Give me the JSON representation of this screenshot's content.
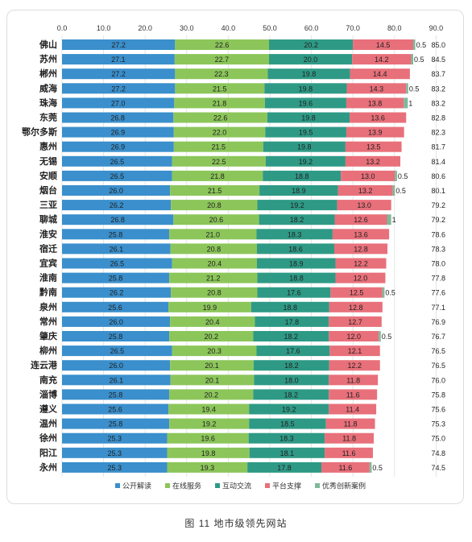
{
  "caption": "图 11    地市级领先网站",
  "chart_data": {
    "type": "bar",
    "orientation": "horizontal",
    "stacked": true,
    "categories": [
      "佛山",
      "苏州",
      "郴州",
      "威海",
      "珠海",
      "东莞",
      "鄂尔多斯",
      "惠州",
      "无锡",
      "安顺",
      "烟台",
      "三亚",
      "聊城",
      "淮安",
      "宿迁",
      "宜宾",
      "淮南",
      "黔南",
      "泉州",
      "常州",
      "肇庆",
      "柳州",
      "连云港",
      "南充",
      "淄博",
      "遵义",
      "温州",
      "徐州",
      "阳江",
      "永州"
    ],
    "series": [
      {
        "name": "公开解读",
        "color": "#3a8fcc",
        "values": [
          27.2,
          27.1,
          27.2,
          27.2,
          27.0,
          26.8,
          26.9,
          26.9,
          26.5,
          26.5,
          26.0,
          26.2,
          26.8,
          25.8,
          26.1,
          26.5,
          25.8,
          26.2,
          25.6,
          26.0,
          25.8,
          26.5,
          26.0,
          26.1,
          25.8,
          25.6,
          25.8,
          25.3,
          25.3,
          25.3
        ]
      },
      {
        "name": "在线服务",
        "color": "#8cc65a",
        "values": [
          22.6,
          22.7,
          22.3,
          21.5,
          21.8,
          22.6,
          22.0,
          21.5,
          22.5,
          21.8,
          21.5,
          20.8,
          20.6,
          21.0,
          20.8,
          20.4,
          21.2,
          20.8,
          19.9,
          20.4,
          20.2,
          20.3,
          20.1,
          20.1,
          20.2,
          19.4,
          19.2,
          19.6,
          19.8,
          19.3
        ]
      },
      {
        "name": "互动交流",
        "color": "#2e9a86",
        "values": [
          20.2,
          20.0,
          19.8,
          19.8,
          19.6,
          19.8,
          19.5,
          19.8,
          19.2,
          18.8,
          18.9,
          19.2,
          18.2,
          18.3,
          18.6,
          18.9,
          18.8,
          17.6,
          18.8,
          17.8,
          18.2,
          17.6,
          18.2,
          18.0,
          18.2,
          19.2,
          18.5,
          18.3,
          18.1,
          17.8
        ]
      },
      {
        "name": "平台支撑",
        "color": "#e8707a",
        "values": [
          14.5,
          14.2,
          14.4,
          14.3,
          13.8,
          13.6,
          13.9,
          13.5,
          13.2,
          13.0,
          13.2,
          13.0,
          12.6,
          13.6,
          12.8,
          12.2,
          12.0,
          12.5,
          12.8,
          12.7,
          12.0,
          12.1,
          12.2,
          11.8,
          11.6,
          11.4,
          11.8,
          11.8,
          11.6,
          11.6
        ]
      },
      {
        "name": "优秀创新案例",
        "color": "#7fb89a",
        "values": [
          0.5,
          0.5,
          0,
          0.5,
          1,
          0,
          0,
          0,
          0,
          0.5,
          0.5,
          0,
          1,
          0,
          0,
          0,
          0,
          0.5,
          0,
          0,
          0.5,
          0,
          0,
          0,
          0,
          0,
          0,
          0,
          0,
          0.5
        ]
      }
    ],
    "totals": [
      85.0,
      84.5,
      83.7,
      83.2,
      83.2,
      82.8,
      82.3,
      81.7,
      81.4,
      80.6,
      80.1,
      79.2,
      79.2,
      78.6,
      78.3,
      78.0,
      77.8,
      77.6,
      77.1,
      76.9,
      76.7,
      76.5,
      76.5,
      76.0,
      75.8,
      75.6,
      75.3,
      75.0,
      74.8,
      74.5
    ],
    "xlim": [
      0,
      90
    ],
    "xticks": [
      "0.0",
      "10.0",
      "20.0",
      "30.0",
      "40.0",
      "50.0",
      "60.0",
      "70.0",
      "80.0",
      "90.0"
    ],
    "legend_position": "bottom",
    "grid": true
  }
}
